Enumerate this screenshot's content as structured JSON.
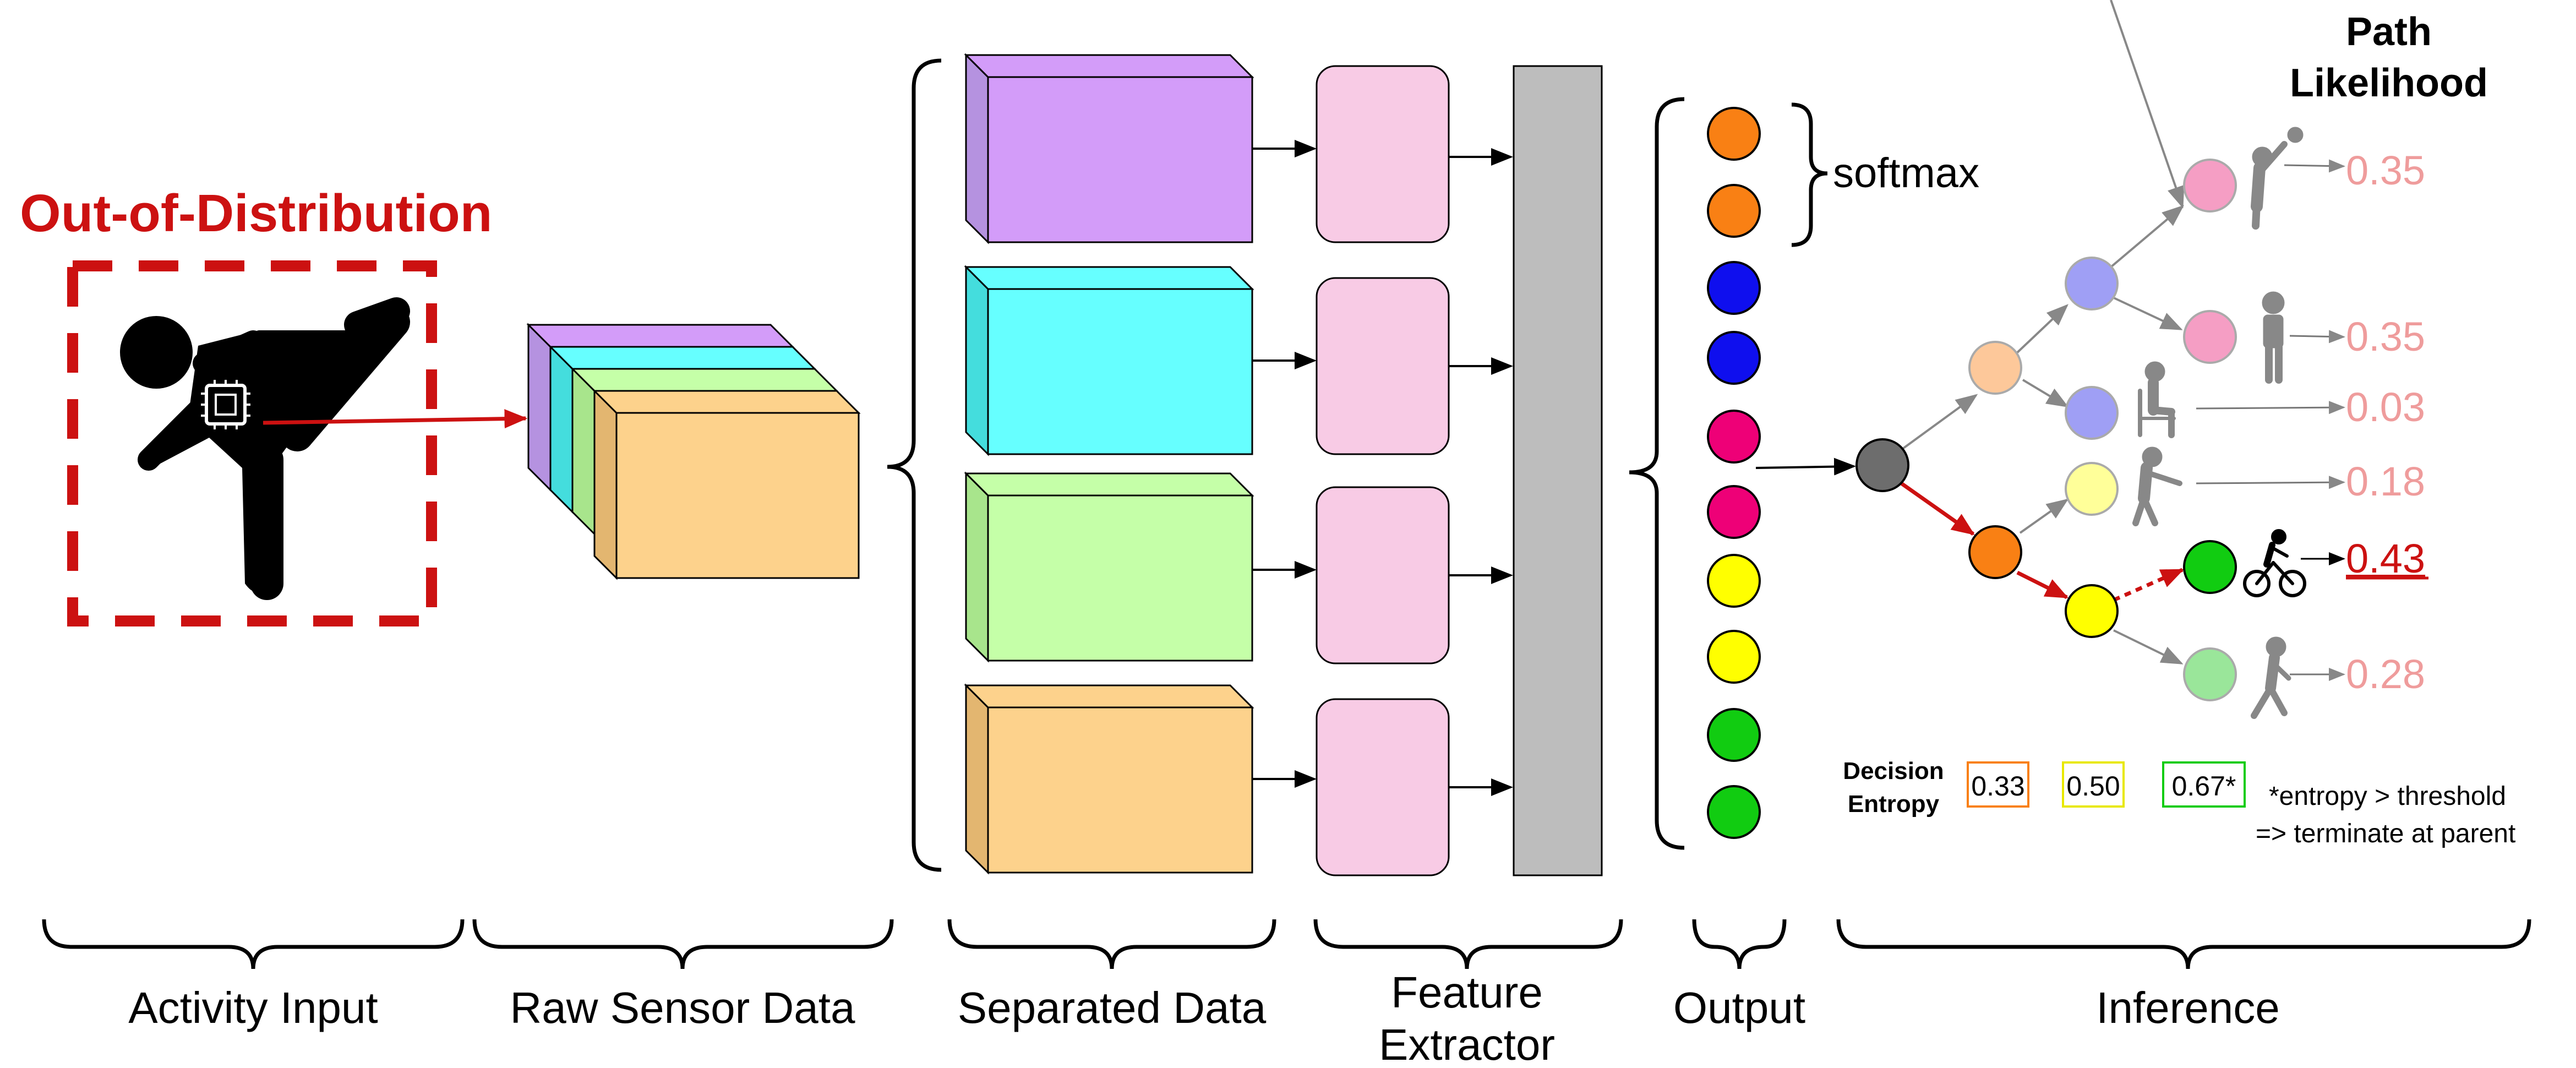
{
  "title": {
    "ood": "Out-of-Distribution",
    "path_likelihood_line1": "Path",
    "path_likelihood_line2": "Likelihood",
    "softmax": "softmax"
  },
  "sections": {
    "activity_input": "Activity Input",
    "raw_sensor_data": "Raw Sensor Data",
    "separated_data": "Separated Data",
    "feature_extractor_line1": "Feature",
    "feature_extractor_line2": "Extractor",
    "output": "Output",
    "inference": "Inference"
  },
  "likelihoods": {
    "a": "0.35",
    "b": "0.35",
    "c": "0.03",
    "d": "0.18",
    "e": "0.43",
    "f": "0.28"
  },
  "entropy": {
    "label_line1": "Decision",
    "label_line2": "Entropy",
    "v1": "0.33",
    "v2": "0.50",
    "v3": "0.67*",
    "note_line1": "*entropy > threshold",
    "note_line2": "=> terminate at parent"
  },
  "colors": {
    "red": "#cc1111",
    "purple": "#d39cf9",
    "cyan": "#66ffff",
    "green": "#c5ffa8",
    "orange_box": "#fdd28c",
    "pink_box": "#f8cbe5",
    "gray_bar": "#bdbdbd",
    "node_orange": "#f98014",
    "node_blue": "#0f0fee",
    "node_magenta": "#ee0077",
    "node_yellow": "#ffff00",
    "node_green": "#11cc11"
  }
}
